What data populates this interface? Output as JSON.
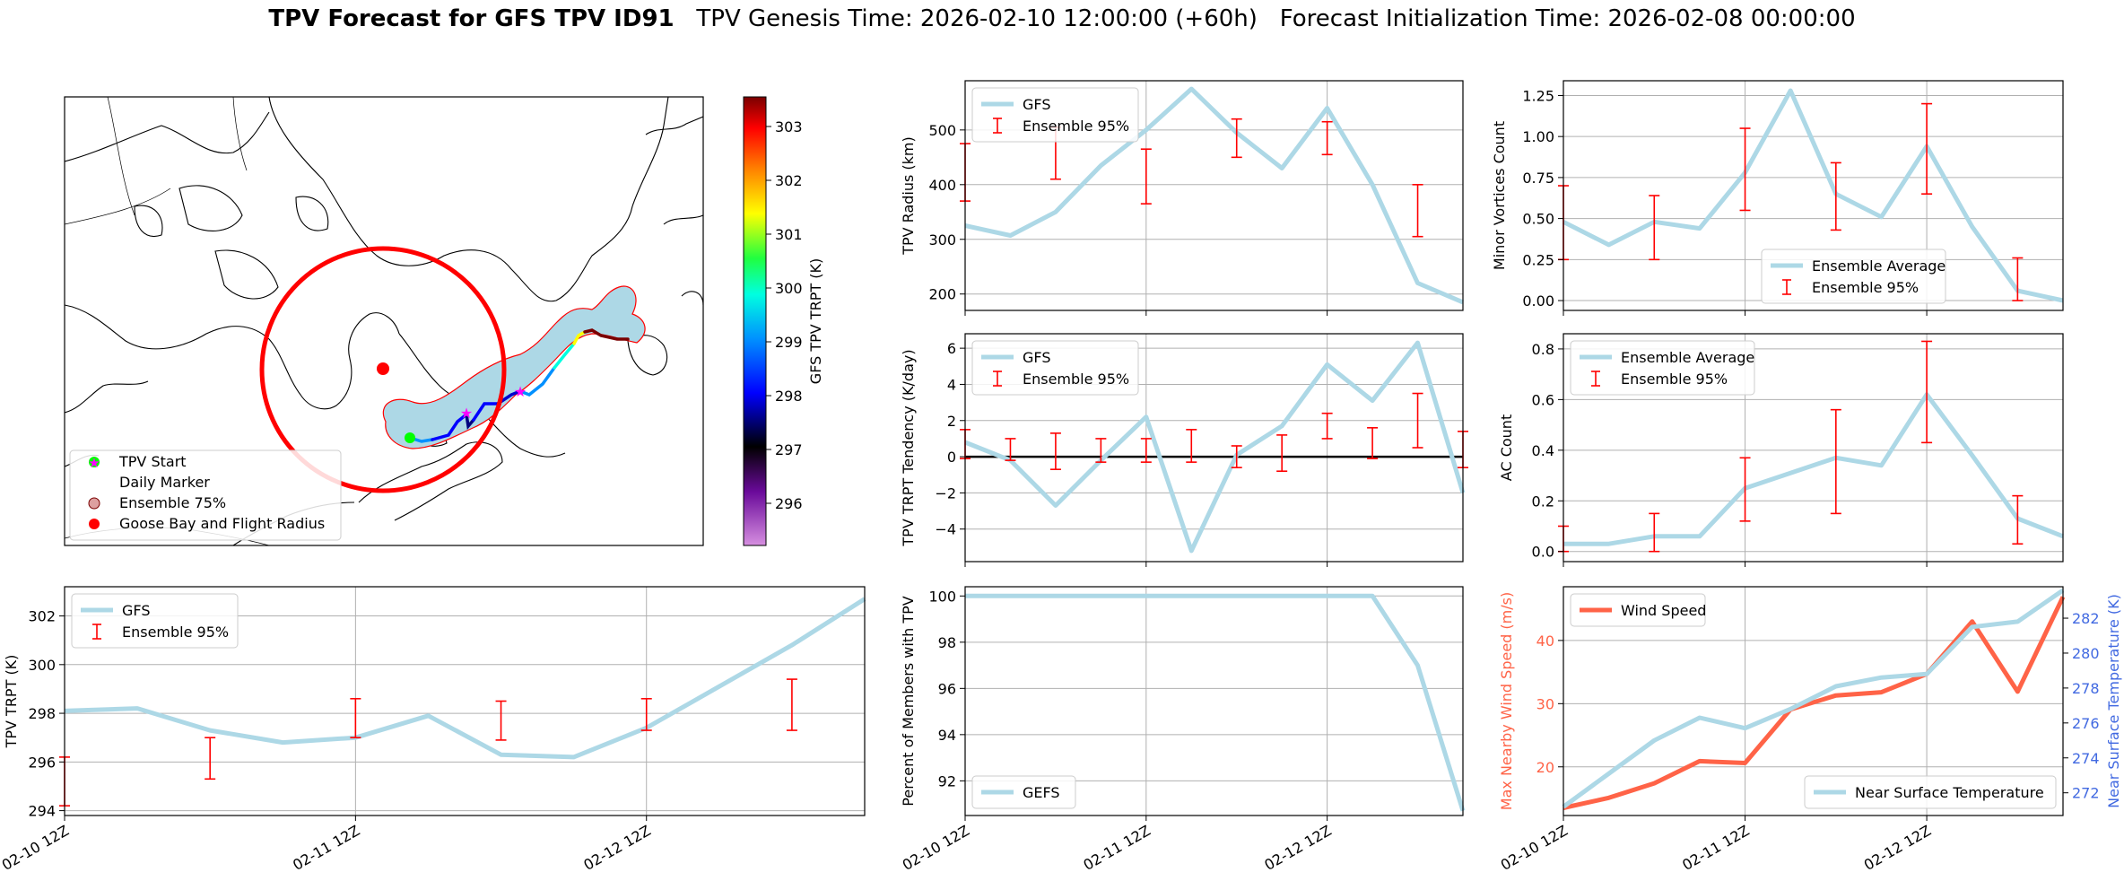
{
  "figure": {
    "title_bold": "TPV Forecast for GFS TPV ID91",
    "title_genesis": "TPV Genesis Time: 2026-02-10 12:00:00 (+60h)",
    "title_init": "Forecast Initialization Time: 2026-02-08 00:00:00"
  },
  "colors": {
    "light_blue": "#add8e6",
    "red": "#ff0000",
    "tomato": "#ff6347",
    "royal_blue": "#4169e1",
    "grid": "#b0b0b0"
  },
  "map": {
    "colorbar_label": "GFS TPV TRPT (K)",
    "colorbar_ticks": [
      "303",
      "302",
      "301",
      "300",
      "299",
      "298",
      "297",
      "296"
    ],
    "legend": [
      "TPV Start",
      "Daily Marker",
      "Ensemble 75%",
      "Goose Bay and Flight Radius"
    ]
  },
  "chart_data": [
    {
      "id": "trpt",
      "type": "line",
      "title": "",
      "xlabel": "",
      "ylabel": "TPV TRPT (K)",
      "x_ticklabels": [
        "02-10 12Z",
        "02-11 12Z",
        "02-12 12Z"
      ],
      "x_tick_pos": [
        0,
        4,
        8
      ],
      "xlim": [
        0,
        11
      ],
      "ylim": [
        293.8,
        303.2
      ],
      "y_ticks": [
        294,
        296,
        298,
        300,
        302
      ],
      "y_ticklabels": [
        "294",
        "296",
        "298",
        "300",
        "302"
      ],
      "legend": [
        "GFS",
        "Ensemble 95%"
      ],
      "series": [
        {
          "name": "GFS",
          "x": [
            0,
            1,
            2,
            3,
            4,
            5,
            6,
            7,
            8,
            9,
            10,
            11
          ],
          "values": [
            298.1,
            298.2,
            297.3,
            296.8,
            297.0,
            297.9,
            296.3,
            296.2,
            297.4,
            299.1,
            300.8,
            302.7
          ]
        }
      ],
      "errorbars": {
        "name": "Ensemble 95%",
        "x": [
          0,
          2,
          4,
          6,
          8,
          10
        ],
        "lower": [
          294.2,
          295.3,
          297.0,
          296.9,
          297.3,
          297.3
        ],
        "upper": [
          296.2,
          297.0,
          298.6,
          298.5,
          298.6,
          299.4
        ]
      }
    },
    {
      "id": "radius",
      "type": "line",
      "ylabel": "TPV Radius (km)",
      "x_tick_pos": [
        0,
        4,
        8
      ],
      "xlim": [
        0,
        11
      ],
      "ylim": [
        170,
        590
      ],
      "y_ticks": [
        200,
        300,
        400,
        500
      ],
      "y_ticklabels": [
        "200",
        "300",
        "400",
        "500"
      ],
      "legend": [
        "GFS",
        "Ensemble 95%"
      ],
      "series": [
        {
          "name": "GFS",
          "x": [
            0,
            1,
            2,
            3,
            4,
            5,
            6,
            7,
            8,
            9,
            10,
            11
          ],
          "values": [
            325,
            307,
            350,
            435,
            500,
            575,
            495,
            430,
            540,
            400,
            220,
            185
          ]
        }
      ],
      "errorbars": {
        "name": "Ensemble 95%",
        "x": [
          0,
          2,
          4,
          6,
          8,
          10
        ],
        "lower": [
          370,
          410,
          365,
          450,
          455,
          305
        ],
        "upper": [
          475,
          505,
          465,
          520,
          515,
          400
        ]
      }
    },
    {
      "id": "minor",
      "type": "line",
      "ylabel": "Minor Vortices Count",
      "x_tick_pos": [
        0,
        4,
        8
      ],
      "xlim": [
        0,
        11
      ],
      "ylim": [
        -0.06,
        1.34
      ],
      "y_ticks": [
        0,
        0.25,
        0.5,
        0.75,
        1.0,
        1.25
      ],
      "y_ticklabels": [
        "0.00",
        "0.25",
        "0.50",
        "0.75",
        "1.00",
        "1.25"
      ],
      "legend": [
        "Ensemble Average",
        "Ensemble 95%"
      ],
      "series": [
        {
          "name": "Ensemble Average",
          "x": [
            0,
            1,
            2,
            3,
            4,
            5,
            6,
            7,
            8,
            9,
            10,
            11
          ],
          "values": [
            0.48,
            0.34,
            0.48,
            0.44,
            0.78,
            1.28,
            0.65,
            0.51,
            0.94,
            0.45,
            0.06,
            0.0
          ]
        }
      ],
      "errorbars": {
        "name": "Ensemble 95%",
        "x": [
          0,
          2,
          4,
          6,
          8,
          10
        ],
        "lower": [
          0.25,
          0.25,
          0.55,
          0.43,
          0.65,
          0.0
        ],
        "upper": [
          0.7,
          0.64,
          1.05,
          0.84,
          1.2,
          0.26
        ]
      }
    },
    {
      "id": "tendency",
      "type": "line",
      "ylabel": "TPV TRPT Tendency (K/day)",
      "x_tick_pos": [
        0,
        4,
        8
      ],
      "xlim": [
        0,
        11
      ],
      "ylim": [
        -5.8,
        6.8
      ],
      "y_ticks": [
        -4,
        -2,
        0,
        2,
        4,
        6
      ],
      "y_ticklabels": [
        "−4",
        "−2",
        "0",
        "2",
        "4",
        "6"
      ],
      "zero_line": 0,
      "legend": [
        "GFS",
        "Ensemble 95%"
      ],
      "series": [
        {
          "name": "GFS",
          "x": [
            0,
            1,
            2,
            3,
            4,
            5,
            6,
            7,
            8,
            9,
            10,
            11
          ],
          "values": [
            0.8,
            -0.2,
            -2.7,
            -0.2,
            2.2,
            -5.2,
            0.1,
            1.7,
            5.1,
            3.1,
            6.3,
            -2.0
          ]
        }
      ],
      "errorbars": {
        "name": "Ensemble 95%",
        "x": [
          0,
          1,
          2,
          3,
          4,
          5,
          6,
          7,
          8,
          9,
          10,
          11
        ],
        "lower": [
          -0.1,
          -0.2,
          -0.7,
          -0.3,
          -0.3,
          -0.3,
          -0.6,
          -0.8,
          1.0,
          -0.1,
          0.5,
          -0.6
        ],
        "upper": [
          1.5,
          1.0,
          1.3,
          1.0,
          1.0,
          1.5,
          0.6,
          1.2,
          2.4,
          1.6,
          3.5,
          1.4
        ]
      }
    },
    {
      "id": "ac",
      "type": "line",
      "ylabel": "AC Count",
      "x_tick_pos": [
        0,
        4,
        8
      ],
      "xlim": [
        0,
        11
      ],
      "ylim": [
        -0.04,
        0.86
      ],
      "y_ticks": [
        0,
        0.2,
        0.4,
        0.6,
        0.8
      ],
      "y_ticklabels": [
        "0.0",
        "0.2",
        "0.4",
        "0.6",
        "0.8"
      ],
      "legend": [
        "Ensemble Average",
        "Ensemble 95%"
      ],
      "series": [
        {
          "name": "Ensemble Average",
          "x": [
            0,
            1,
            2,
            3,
            4,
            5,
            6,
            7,
            8,
            9,
            10,
            11
          ],
          "values": [
            0.03,
            0.03,
            0.06,
            0.06,
            0.25,
            0.31,
            0.37,
            0.34,
            0.62,
            0.38,
            0.13,
            0.06
          ]
        }
      ],
      "errorbars": {
        "name": "Ensemble 95%",
        "x": [
          0,
          2,
          4,
          6,
          8,
          10
        ],
        "lower": [
          0.0,
          0.0,
          0.12,
          0.15,
          0.43,
          0.03
        ],
        "upper": [
          0.1,
          0.15,
          0.37,
          0.56,
          0.83,
          0.22
        ]
      }
    },
    {
      "id": "percent",
      "type": "line",
      "ylabel": "Percent of Members with TPV",
      "x_ticklabels": [
        "02-10 12Z",
        "02-11 12Z",
        "02-12 12Z"
      ],
      "x_tick_pos": [
        0,
        4,
        8
      ],
      "xlim": [
        0,
        11
      ],
      "ylim": [
        90.5,
        100.4
      ],
      "y_ticks": [
        92,
        94,
        96,
        98,
        100
      ],
      "y_ticklabels": [
        "92",
        "94",
        "96",
        "98",
        "100"
      ],
      "legend": [
        "GEFS"
      ],
      "series": [
        {
          "name": "GEFS",
          "x": [
            0,
            1,
            2,
            3,
            4,
            5,
            6,
            7,
            8,
            9,
            10,
            11
          ],
          "values": [
            100,
            100,
            100,
            100,
            100,
            100,
            100,
            100,
            100,
            100,
            97,
            90.7
          ]
        }
      ]
    },
    {
      "id": "wind",
      "type": "line",
      "ylabel": "Max Nearby Wind Speed (m/s)",
      "ylabel2": "Near Surface Temperature (K)",
      "x_ticklabels": [
        "02-10 12Z",
        "02-11 12Z",
        "02-12 12Z"
      ],
      "x_tick_pos": [
        0,
        4,
        8
      ],
      "xlim": [
        0,
        11
      ],
      "ylim": [
        12.3,
        48.5
      ],
      "ylim2": [
        270.7,
        283.8
      ],
      "y_ticks": [
        20,
        30,
        40
      ],
      "y_ticklabels": [
        "20",
        "30",
        "40"
      ],
      "y2_ticks": [
        272,
        274,
        276,
        278,
        280,
        282
      ],
      "y2_ticklabels": [
        "272",
        "274",
        "276",
        "278",
        "280",
        "282"
      ],
      "legend": [
        "Wind Speed"
      ],
      "legend2": [
        "Near Surface Temperature"
      ],
      "series": [
        {
          "name": "Wind Speed",
          "axis": "left",
          "x": [
            0,
            1,
            2,
            3,
            4,
            5,
            6,
            7,
            8,
            9,
            10,
            11
          ],
          "values": [
            13.5,
            15.1,
            17.4,
            20.9,
            20.6,
            29.1,
            31.3,
            31.8,
            34.7,
            43.0,
            31.9,
            46.9
          ]
        },
        {
          "name": "Near Surface Temperature",
          "axis": "right",
          "x": [
            0,
            1,
            2,
            3,
            4,
            5,
            6,
            7,
            8,
            9,
            10,
            11
          ],
          "values": [
            271.2,
            273.1,
            275.0,
            276.3,
            275.7,
            276.8,
            278.1,
            278.6,
            278.8,
            281.5,
            281.8,
            283.6
          ]
        }
      ]
    }
  ]
}
